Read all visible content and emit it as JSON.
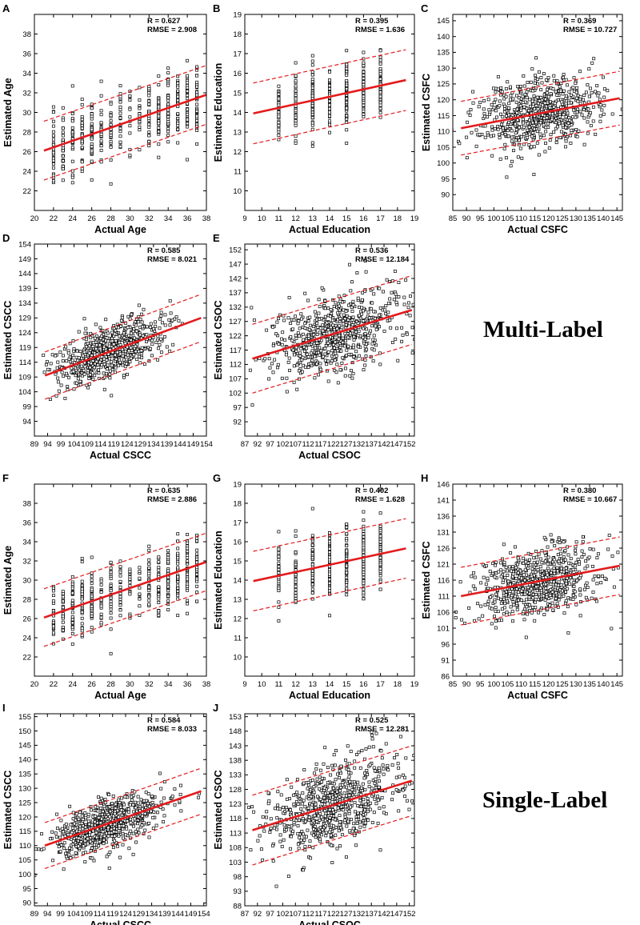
{
  "figure": {
    "group_labels": {
      "multi": "Multi-Label",
      "single": "Single-Label"
    },
    "colors": {
      "fit_line": "#e41a1c",
      "points": "#000000",
      "axes": "#000000"
    }
  },
  "chart_data": [
    {
      "panel": "A",
      "type": "scatter",
      "group": "Multi-Label",
      "xlabel": "Actual Age",
      "ylabel": "Estimated Age",
      "xlim": [
        20,
        38
      ],
      "ylim": [
        20,
        40
      ],
      "xticks": [
        20,
        22,
        24,
        26,
        28,
        30,
        32,
        34,
        36,
        38
      ],
      "yticks": [
        22,
        24,
        26,
        28,
        30,
        32,
        34,
        36,
        38
      ],
      "stats": {
        "r": "R = 0.627",
        "rmse": "RMSE = 2.908"
      },
      "fit_line": {
        "x": [
          21,
          38
        ],
        "y": [
          26.1,
          31.8
        ]
      },
      "band_offset": 3.0,
      "discrete_x": true,
      "x_values": [
        22,
        23,
        24,
        25,
        26,
        27,
        28,
        29,
        30,
        31,
        32,
        33,
        34,
        35,
        36,
        37
      ],
      "n_points": 500,
      "y_spread": 1.7
    },
    {
      "panel": "B",
      "type": "scatter",
      "group": "Multi-Label",
      "xlabel": "Actual Education",
      "ylabel": "Estimated Education",
      "xlim": [
        9,
        19
      ],
      "ylim": [
        9,
        19
      ],
      "xticks": [
        9,
        10,
        11,
        12,
        13,
        14,
        15,
        16,
        17,
        18,
        19
      ],
      "yticks": [
        10,
        11,
        12,
        13,
        14,
        15,
        16,
        17,
        18,
        19
      ],
      "stats": {
        "r": "R = 0.395",
        "rmse": "RMSE = 1.636"
      },
      "fit_line": {
        "x": [
          9.5,
          18.5
        ],
        "y": [
          13.95,
          15.65
        ]
      },
      "band_offset": 1.55,
      "discrete_x": true,
      "x_values": [
        11,
        12,
        13,
        14,
        15,
        16,
        17
      ],
      "n_points": 420,
      "y_spread": 0.85
    },
    {
      "panel": "C",
      "type": "scatter",
      "group": "Multi-Label",
      "xlabel": "Actual CSFC",
      "ylabel": "Estimated CSFC",
      "xlim": [
        85,
        147
      ],
      "ylim": [
        85,
        147
      ],
      "xticks": [
        85,
        90,
        95,
        100,
        105,
        110,
        115,
        120,
        125,
        130,
        135,
        140,
        145
      ],
      "yticks": [
        90,
        95,
        100,
        105,
        110,
        115,
        120,
        125,
        130,
        135,
        140,
        145
      ],
      "stats": {
        "r": "R = 0.369",
        "rmse": "RMSE = 10.727"
      },
      "fit_line": {
        "x": [
          88,
          146
        ],
        "y": [
          111,
          120.5
        ]
      },
      "band_offset": 8.5,
      "discrete_x": false,
      "x_center": 116,
      "x_spread": 11,
      "n_points": 700,
      "y_spread": 5.5
    },
    {
      "panel": "D",
      "type": "scatter",
      "group": "Multi-Label",
      "xlabel": "Actual CSCC",
      "ylabel": "Estimated CSCC",
      "xlim": [
        89,
        154
      ],
      "ylim": [
        89,
        154
      ],
      "xticks": [
        89,
        94,
        99,
        104,
        109,
        114,
        119,
        124,
        129,
        134,
        139,
        144,
        149,
        154
      ],
      "yticks": [
        94,
        99,
        104,
        109,
        114,
        119,
        124,
        129,
        134,
        139,
        144,
        149,
        154
      ],
      "stats": {
        "r": "R = 0.585",
        "rmse": "RMSE = 8.021"
      },
      "fit_line": {
        "x": [
          93,
          152
        ],
        "y": [
          109.5,
          129
        ]
      },
      "band_offset": 8.0,
      "discrete_x": false,
      "x_center": 117,
      "x_spread": 10,
      "n_points": 700,
      "y_spread": 4.5
    },
    {
      "panel": "E",
      "type": "scatter",
      "group": "Multi-Label",
      "xlabel": "Actual CSOC",
      "ylabel": "Estimated CSOC",
      "xlim": [
        87,
        154
      ],
      "ylim": [
        87,
        154
      ],
      "xticks": [
        87,
        92,
        97,
        102,
        107,
        112,
        117,
        122,
        127,
        132,
        137,
        142,
        147,
        152
      ],
      "yticks": [
        92,
        97,
        102,
        107,
        112,
        117,
        122,
        127,
        132,
        137,
        142,
        147,
        152
      ],
      "stats": {
        "r": "R = 0.536",
        "rmse": "RMSE = 12.184"
      },
      "fit_line": {
        "x": [
          90,
          153
        ],
        "y": [
          114,
          131
        ]
      },
      "band_offset": 12.0,
      "discrete_x": false,
      "x_center": 122,
      "x_spread": 13,
      "n_points": 700,
      "y_spread": 7
    },
    {
      "panel": "F",
      "type": "scatter",
      "group": "Single-Label",
      "xlabel": "Actual Age",
      "ylabel": "Estimated Age",
      "xlim": [
        20,
        38
      ],
      "ylim": [
        20,
        40
      ],
      "xticks": [
        20,
        22,
        24,
        26,
        28,
        30,
        32,
        34,
        36,
        38
      ],
      "yticks": [
        22,
        24,
        26,
        28,
        30,
        32,
        34,
        36,
        38
      ],
      "stats": {
        "r": "R = 0.635",
        "rmse": "RMSE = 2.886"
      },
      "fit_line": {
        "x": [
          21,
          38
        ],
        "y": [
          26.1,
          31.9
        ]
      },
      "band_offset": 3.0,
      "discrete_x": true,
      "x_values": [
        22,
        23,
        24,
        25,
        26,
        27,
        28,
        29,
        30,
        31,
        32,
        33,
        34,
        35,
        36,
        37
      ],
      "n_points": 500,
      "y_spread": 1.7
    },
    {
      "panel": "G",
      "type": "scatter",
      "group": "Single-Label",
      "xlabel": "Actual Education",
      "ylabel": "Estimated Education",
      "xlim": [
        9,
        19
      ],
      "ylim": [
        9,
        19
      ],
      "xticks": [
        9,
        10,
        11,
        12,
        13,
        14,
        15,
        16,
        17,
        18,
        19
      ],
      "yticks": [
        10,
        11,
        12,
        13,
        14,
        15,
        16,
        17,
        18,
        19
      ],
      "stats": {
        "r": "R = 0.402",
        "rmse": "RMSE = 1.628"
      },
      "fit_line": {
        "x": [
          9.5,
          18.5
        ],
        "y": [
          13.95,
          15.65
        ]
      },
      "band_offset": 1.55,
      "discrete_x": true,
      "x_values": [
        11,
        12,
        13,
        14,
        15,
        16,
        17
      ],
      "n_points": 420,
      "y_spread": 0.85
    },
    {
      "panel": "H",
      "type": "scatter",
      "group": "Single-Label",
      "xlabel": "Actual CSFC",
      "ylabel": "Estimated CSFC",
      "xlim": [
        85,
        147
      ],
      "ylim": [
        86,
        146
      ],
      "xticks": [
        85,
        90,
        95,
        100,
        105,
        110,
        115,
        120,
        125,
        130,
        135,
        140,
        145
      ],
      "yticks": [
        86,
        91,
        96,
        101,
        106,
        111,
        116,
        121,
        126,
        131,
        136,
        141,
        146
      ],
      "stats": {
        "r": "R = 0.380",
        "rmse": "RMSE = 10.667"
      },
      "fit_line": {
        "x": [
          88,
          146
        ],
        "y": [
          111,
          120.5
        ]
      },
      "band_offset": 9.0,
      "discrete_x": false,
      "x_center": 116,
      "x_spread": 11,
      "n_points": 700,
      "y_spread": 5.5
    },
    {
      "panel": "I",
      "type": "scatter",
      "group": "Single-Label",
      "xlabel": "Actual CSCC",
      "ylabel": "Estimated CSCC",
      "xlim": [
        89,
        155
      ],
      "ylim": [
        89,
        156
      ],
      "xticks": [
        89,
        94,
        99,
        104,
        109,
        114,
        119,
        124,
        129,
        134,
        139,
        144,
        149,
        154
      ],
      "yticks": [
        90,
        95,
        100,
        105,
        110,
        115,
        120,
        125,
        130,
        135,
        140,
        145,
        150,
        155
      ],
      "stats": {
        "r": "R = 0.584",
        "rmse": "RMSE = 8.033"
      },
      "fit_line": {
        "x": [
          93,
          153
        ],
        "y": [
          110,
          129
        ]
      },
      "band_offset": 8.0,
      "discrete_x": false,
      "x_center": 117,
      "x_spread": 10,
      "n_points": 700,
      "y_spread": 4.5
    },
    {
      "panel": "J",
      "type": "scatter",
      "group": "Single-Label",
      "xlabel": "Actual CSOC",
      "ylabel": "Estimated CSOC",
      "xlim": [
        87,
        154
      ],
      "ylim": [
        88,
        154
      ],
      "xticks": [
        87,
        92,
        97,
        102,
        107,
        112,
        117,
        122,
        127,
        132,
        137,
        142,
        147,
        152
      ],
      "yticks": [
        88,
        93,
        98,
        103,
        108,
        113,
        118,
        123,
        128,
        133,
        138,
        143,
        148,
        153
      ],
      "stats": {
        "r": "R = 0.525",
        "rmse": "RMSE = 12.281"
      },
      "fit_line": {
        "x": [
          90,
          153
        ],
        "y": [
          114,
          131
        ]
      },
      "band_offset": 12.0,
      "discrete_x": false,
      "x_center": 122,
      "x_spread": 13,
      "n_points": 700,
      "y_spread": 7
    }
  ]
}
